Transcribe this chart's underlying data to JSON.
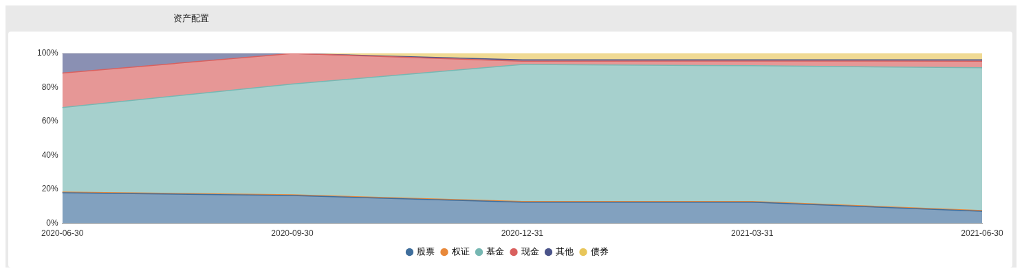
{
  "chart_data": {
    "type": "area",
    "title": "资产配置",
    "stacked": true,
    "legend": "bottom",
    "marker": "none",
    "categories": [
      "2020-06-30",
      "2020-09-30",
      "2020-12-31",
      "2021-03-31",
      "2021-06-30"
    ],
    "ylim": [
      0,
      100
    ],
    "yticks": [
      {
        "value": 0,
        "label": "0%"
      },
      {
        "value": 20,
        "label": "20%"
      },
      {
        "value": 40,
        "label": "40%"
      },
      {
        "value": 60,
        "label": "60%"
      },
      {
        "value": 80,
        "label": "80%"
      },
      {
        "value": 100,
        "label": "100%"
      }
    ],
    "series": [
      {
        "name": "股票",
        "color": "#3f6e9c",
        "values": [
          18.0,
          16.4,
          12.5,
          12.5,
          7.1
        ]
      },
      {
        "name": "权证",
        "color": "#e8883a",
        "values": [
          0.4,
          0.4,
          0.4,
          0.4,
          0.4
        ]
      },
      {
        "name": "基金",
        "color": "#76b7b2",
        "values": [
          49.8,
          65.2,
          80.6,
          79.9,
          84.1
        ]
      },
      {
        "name": "现金",
        "color": "#d9605e",
        "values": [
          20.3,
          18.0,
          2.0,
          2.8,
          3.9
        ]
      },
      {
        "name": "其他",
        "color": "#4b548a",
        "values": [
          11.5,
          0,
          0.8,
          0.7,
          0.8
        ]
      },
      {
        "name": "债券",
        "color": "#e8c65a",
        "values": [
          0,
          0,
          3.7,
          3.7,
          3.7
        ]
      }
    ]
  }
}
